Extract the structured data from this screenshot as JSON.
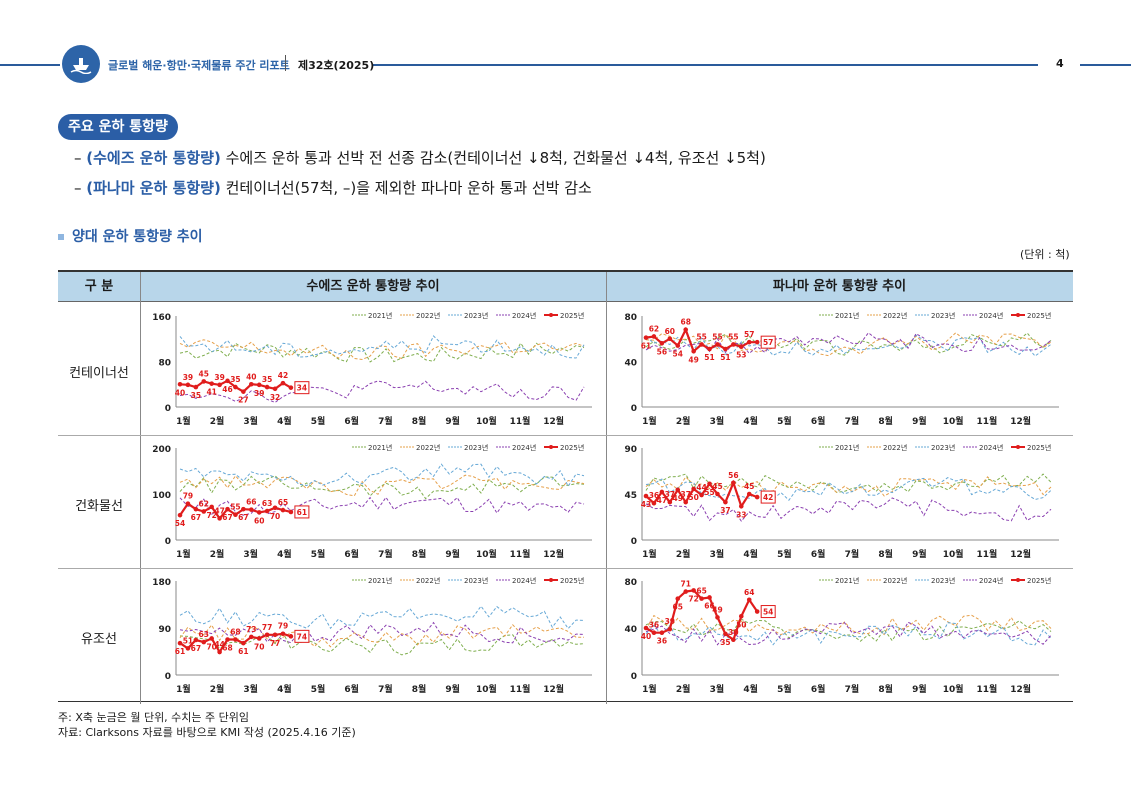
{
  "header": {
    "title": "글로벌 해운·항만·국제물류 주간 리포트",
    "issue": "제32호(2025)",
    "page": "4"
  },
  "section": {
    "pill": "주요 운하 통항량",
    "bullets": [
      {
        "dash": "–",
        "highlight": "(수에즈 운하 통항량)",
        "text": " 수에즈 운하 통과 선박 전 선종 감소(컨테이너선 ↓8척, 건화물선 ↓4척, 유조선 ↓5척)"
      },
      {
        "dash": "–",
        "highlight": "(파나마 운하 통항량)",
        "text": " 컨테이너선(57척, –)을 제외한 파나마 운하 통과 선박 감소"
      }
    ],
    "subtitle": "양대 운하 통항량 추이",
    "unit": "(단위 : 척)"
  },
  "table": {
    "col_header": "구 분",
    "col_suez": "수에즈 운하 통항량 추이",
    "col_panama": "파나마 운하 통항량 추이",
    "rows": [
      "컨테이너선",
      "건화물선",
      "유조선"
    ]
  },
  "colors": {
    "y2021": "#7fae4e",
    "y2022": "#e6a04a",
    "y2023": "#66a8d6",
    "y2024": "#8a3fb0",
    "y2025": "#e01c1c"
  },
  "chart_data": [
    {
      "id": "suez-container",
      "type": "line",
      "ylim": [
        0,
        160
      ],
      "yticks": [
        "0",
        "80",
        "160"
      ],
      "months": [
        "1월",
        "2월",
        "3월",
        "4월",
        "5월",
        "6월",
        "7월",
        "8월",
        "9월",
        "10월",
        "11월",
        "12월"
      ],
      "legend": [
        "2021년",
        "2022년",
        "2023년",
        "2024년",
        "2025년"
      ],
      "base": {
        "y2021": 95,
        "y2022": 100,
        "y2023": 105,
        "y2024": 28
      },
      "series_2025": [
        40,
        39,
        35,
        45,
        41,
        39,
        46,
        35,
        27,
        40,
        39,
        35,
        32,
        42,
        34
      ],
      "labels_2025": [
        "40",
        "39",
        "35",
        "45",
        "41",
        "39",
        "46",
        "35",
        "27",
        "40",
        "39",
        "35",
        "32",
        "42",
        "34"
      ]
    },
    {
      "id": "panama-container",
      "type": "line",
      "ylim": [
        0,
        80
      ],
      "yticks": [
        "0",
        "40",
        "80"
      ],
      "months": [
        "1월",
        "2월",
        "3월",
        "4월",
        "5월",
        "6월",
        "7월",
        "8월",
        "9월",
        "10월",
        "11월",
        "12월"
      ],
      "legend": [
        "2021년",
        "2022년",
        "2023년",
        "2024년",
        "2025년"
      ],
      "base": {
        "y2021": 55,
        "y2022": 55,
        "y2023": 54,
        "y2024": 56
      },
      "series_2025": [
        61,
        62,
        56,
        60,
        54,
        68,
        49,
        55,
        51,
        55,
        51,
        55,
        53,
        57,
        57
      ],
      "labels_2025": [
        "61",
        "62",
        "56",
        "60",
        "54",
        "68",
        "49",
        "55",
        "51",
        "55",
        "51",
        "55",
        "53",
        "57",
        "57"
      ]
    },
    {
      "id": "suez-dry",
      "type": "line",
      "ylim": [
        0,
        200
      ],
      "yticks": [
        "0",
        "100",
        "200"
      ],
      "months": [
        "1월",
        "2월",
        "3월",
        "4월",
        "5월",
        "6월",
        "7월",
        "8월",
        "9월",
        "10월",
        "11월",
        "12월"
      ],
      "legend": [
        "2021년",
        "2022년",
        "2023년",
        "2024년",
        "2025년"
      ],
      "base": {
        "y2021": 115,
        "y2022": 120,
        "y2023": 140,
        "y2024": 75
      },
      "series_2025": [
        54,
        79,
        67,
        62,
        72,
        47,
        67,
        55,
        67,
        66,
        60,
        63,
        70,
        65,
        61
      ],
      "labels_2025": [
        "54",
        "79",
        "67",
        "62",
        "72",
        "47",
        "67",
        "55",
        "67",
        "66",
        "60",
        "63",
        "70",
        "65",
        "61"
      ]
    },
    {
      "id": "panama-dry",
      "type": "line",
      "ylim": [
        0,
        90
      ],
      "yticks": [
        "0",
        "45",
        "90"
      ],
      "months": [
        "1월",
        "2월",
        "3월",
        "4월",
        "5월",
        "6월",
        "7월",
        "8월",
        "9월",
        "10월",
        "11월",
        "12월"
      ],
      "legend": [
        "2021년",
        "2022년",
        "2023년",
        "2024년",
        "2025년"
      ],
      "base": {
        "y2021": 55,
        "y2022": 52,
        "y2023": 50,
        "y2024": 30
      },
      "series_2025": [
        43,
        36,
        47,
        37,
        49,
        37,
        50,
        44,
        55,
        45,
        37,
        56,
        33,
        45,
        42
      ],
      "labels_2025": [
        "43",
        "36",
        "47",
        "37",
        "49",
        "37",
        "50",
        "44",
        "55",
        "45",
        "37",
        "56",
        "33",
        "45",
        "42"
      ]
    },
    {
      "id": "suez-tanker",
      "type": "line",
      "ylim": [
        0,
        180
      ],
      "yticks": [
        "0",
        "90",
        "180"
      ],
      "months": [
        "1월",
        "2월",
        "3월",
        "4월",
        "5월",
        "6월",
        "7월",
        "8월",
        "9월",
        "10월",
        "11월",
        "12월"
      ],
      "legend": [
        "2021년",
        "2022년",
        "2023년",
        "2024년",
        "2025년"
      ],
      "base": {
        "y2021": 60,
        "y2022": 75,
        "y2023": 110,
        "y2024": 80
      },
      "series_2025": [
        61,
        51,
        67,
        63,
        70,
        44,
        68,
        68,
        61,
        73,
        70,
        77,
        77,
        79,
        74
      ],
      "labels_2025": [
        "61",
        "51",
        "67",
        "63",
        "70",
        "44",
        "68",
        "68",
        "61",
        "73",
        "70",
        "77",
        "77",
        "79",
        "74"
      ]
    },
    {
      "id": "panama-tanker",
      "type": "line",
      "ylim": [
        0,
        80
      ],
      "yticks": [
        "0",
        "40",
        "80"
      ],
      "months": [
        "1월",
        "2월",
        "3월",
        "4월",
        "5월",
        "6월",
        "7월",
        "8월",
        "9월",
        "10월",
        "11월",
        "12월"
      ],
      "legend": [
        "2021년",
        "2022년",
        "2023년",
        "2024년",
        "2025년"
      ],
      "base": {
        "y2021": 38,
        "y2022": 42,
        "y2023": 35,
        "y2024": 36
      },
      "series_2025": [
        40,
        36,
        36,
        39,
        65,
        71,
        72,
        65,
        66,
        49,
        35,
        30,
        50,
        64,
        54
      ],
      "labels_2025": [
        "40",
        "36",
        "36",
        "39",
        "65",
        "71",
        "72",
        "65",
        "66",
        "49",
        "35",
        "30",
        "50",
        "64",
        "54"
      ]
    }
  ],
  "notes": [
    "주: X축 눈금은 월 단위, 수치는 주 단위임",
    "자료: Clarksons 자료를 바탕으로 KMI 작성 (2025.4.16 기준)"
  ]
}
